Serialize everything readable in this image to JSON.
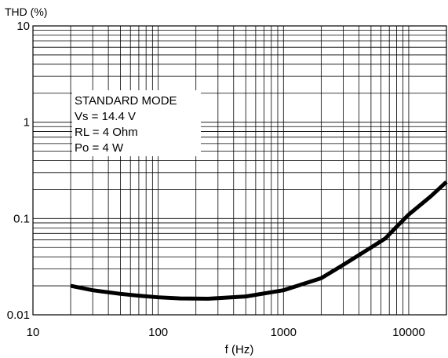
{
  "chart_data": {
    "type": "line",
    "title": "",
    "ylabel": "THD (%)",
    "xlabel": "f (Hz)",
    "xscale": "log",
    "yscale": "log",
    "xlim": [
      10,
      20000
    ],
    "ylim": [
      0.01,
      10
    ],
    "grid": true,
    "xticks": [
      {
        "value": 10,
        "label": "10"
      },
      {
        "value": 100,
        "label": "100"
      },
      {
        "value": 1000,
        "label": "1000"
      },
      {
        "value": 10000,
        "label": "10000"
      }
    ],
    "yticks": [
      {
        "value": 10,
        "label": "10"
      },
      {
        "value": 1,
        "label": "1"
      },
      {
        "value": 0.1,
        "label": "0.1"
      },
      {
        "value": 0.01,
        "label": "0.01"
      }
    ],
    "annotation": {
      "lines": [
        "STANDARD MODE",
        "Vs = 14.4 V",
        "RL = 4 Ohm",
        "Po = 4 W"
      ],
      "placement": "upper-left"
    },
    "series": [
      {
        "x": [
          20,
          30,
          50,
          70,
          100,
          150,
          250,
          500,
          1000,
          2000,
          3000,
          5000,
          6500,
          8000,
          10000,
          15000,
          20000
        ],
        "y": [
          0.02,
          0.018,
          0.0165,
          0.0158,
          0.0152,
          0.0148,
          0.0147,
          0.0155,
          0.018,
          0.024,
          0.033,
          0.05,
          0.062,
          0.082,
          0.11,
          0.17,
          0.24
        ]
      }
    ]
  }
}
